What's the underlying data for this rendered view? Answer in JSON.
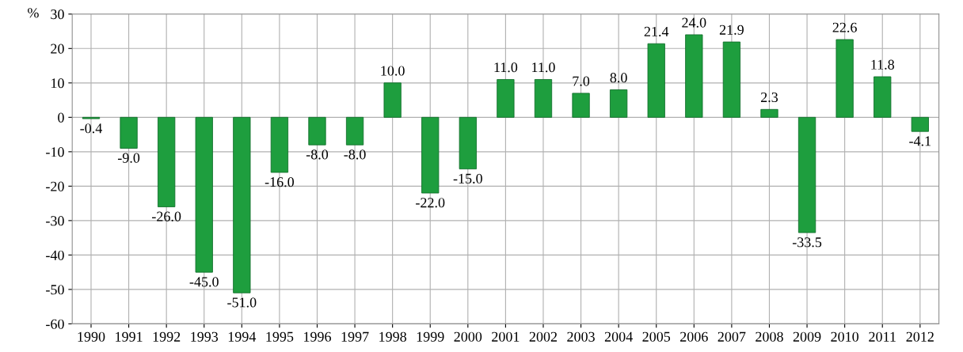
{
  "chart_data": {
    "type": "bar",
    "ylabel": "%",
    "categories": [
      "1990",
      "1991",
      "1992",
      "1993",
      "1994",
      "1995",
      "1996",
      "1997",
      "1998",
      "1999",
      "2000",
      "2001",
      "2002",
      "2003",
      "2004",
      "2005",
      "2006",
      "2007",
      "2008",
      "2009",
      "2010",
      "2011",
      "2012"
    ],
    "values": [
      -0.4,
      -9.0,
      -26.0,
      -45.0,
      -51.0,
      -16.0,
      -8.0,
      -8.0,
      10.0,
      -22.0,
      -15.0,
      11.0,
      11.0,
      7.0,
      8.0,
      21.4,
      24.0,
      21.9,
      2.3,
      -33.5,
      22.6,
      11.8,
      -4.1
    ],
    "color": "#1e9e3e",
    "ylim": [
      -60,
      30
    ],
    "yticks": [
      -60,
      -50,
      -40,
      -30,
      -20,
      -10,
      0,
      10,
      20,
      30
    ],
    "value_labels": [
      "-0.4",
      "-9.0",
      "-26.0",
      "-45.0",
      "-51.0",
      "-16.0",
      "-8.0",
      "-8.0",
      "10.0",
      "-22.0",
      "-15.0",
      "11.0",
      "11.0",
      "7.0",
      "8.0",
      "21.4",
      "24.0",
      "21.9",
      "2.3",
      "-33.5",
      "22.6",
      "11.8",
      "-4.1"
    ],
    "grid": true,
    "legend": false
  }
}
